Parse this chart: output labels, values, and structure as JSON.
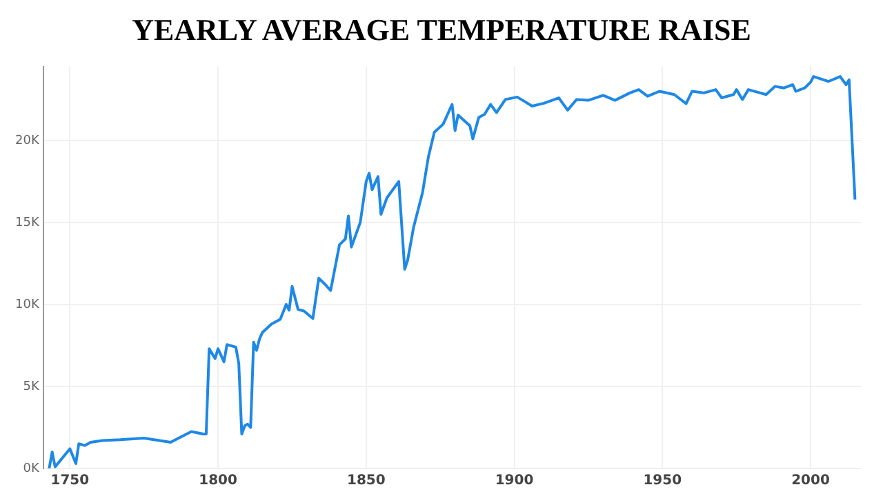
{
  "chart_data": {
    "type": "line",
    "title": "YEARLY AVERAGE TEMPERATURE RAISE",
    "x": [
      1743,
      1744,
      1745,
      1750,
      1752,
      1753,
      1755,
      1757,
      1761,
      1767,
      1775,
      1784,
      1791,
      1795,
      1796,
      1797,
      1799,
      1800,
      1802,
      1803,
      1805,
      1806,
      1807,
      1808,
      1809,
      1810,
      1811,
      1812,
      1813,
      1814,
      1815,
      1818,
      1821,
      1823,
      1824,
      1825,
      1827,
      1829,
      1832,
      1834,
      1836,
      1838,
      1841,
      1843,
      1844,
      1845,
      1848,
      1850,
      1851,
      1852,
      1854,
      1855,
      1857,
      1861,
      1863,
      1864,
      1866,
      1869,
      1871,
      1873,
      1876,
      1879,
      1880,
      1881,
      1885,
      1886,
      1888,
      1890,
      1892,
      1894,
      1897,
      1901,
      1906,
      1910,
      1915,
      1918,
      1921,
      1925,
      1930,
      1934,
      1939,
      1942,
      1945,
      1949,
      1954,
      1958,
      1960,
      1964,
      1968,
      1970,
      1974,
      1975,
      1977,
      1979,
      1983,
      1985,
      1988,
      1991,
      1994,
      1995,
      1998,
      2000,
      2001,
      2006,
      2010,
      2012,
      2013,
      2015
    ],
    "series": [
      {
        "color": "#1e88e5",
        "values": [
          0,
          1000,
          100,
          1200,
          300,
          1500,
          1400,
          1600,
          1700,
          1750,
          1850,
          1600,
          2250,
          2100,
          2100,
          7300,
          6700,
          7300,
          6500,
          7550,
          7450,
          7400,
          6400,
          2100,
          2600,
          2700,
          2500,
          7700,
          7200,
          7900,
          8300,
          8800,
          9100,
          10000,
          9650,
          11100,
          9700,
          9600,
          9150,
          11600,
          11250,
          10850,
          13650,
          14000,
          15400,
          13500,
          15000,
          17500,
          18000,
          17000,
          17800,
          15500,
          16500,
          17500,
          12150,
          12700,
          14700,
          16800,
          19000,
          20500,
          21000,
          22200,
          20600,
          21550,
          20900,
          20100,
          21400,
          21600,
          22200,
          21700,
          22500,
          22650,
          22100,
          22270,
          22600,
          21850,
          22500,
          22450,
          22750,
          22450,
          22900,
          23100,
          22700,
          23000,
          22800,
          22250,
          23000,
          22900,
          23100,
          22600,
          22800,
          23100,
          22500,
          23100,
          22900,
          22800,
          23300,
          23200,
          23400,
          23000,
          23200,
          23550,
          23900,
          23600,
          23900,
          23400,
          23700,
          16400
        ]
      }
    ],
    "xlim": [
      1741,
      2017
    ],
    "xticks": [
      1750,
      1800,
      1850,
      1900,
      1950,
      2000
    ],
    "ylim": [
      0,
      24500
    ],
    "yticks": [
      {
        "value": 0,
        "label": "0K"
      },
      {
        "value": 5000,
        "label": "5K"
      },
      {
        "value": 10000,
        "label": "10K"
      },
      {
        "value": 15000,
        "label": "15K"
      },
      {
        "value": 20000,
        "label": "20K"
      }
    ],
    "grid": true,
    "legend": false,
    "marker": "none",
    "line_style": "solid"
  }
}
